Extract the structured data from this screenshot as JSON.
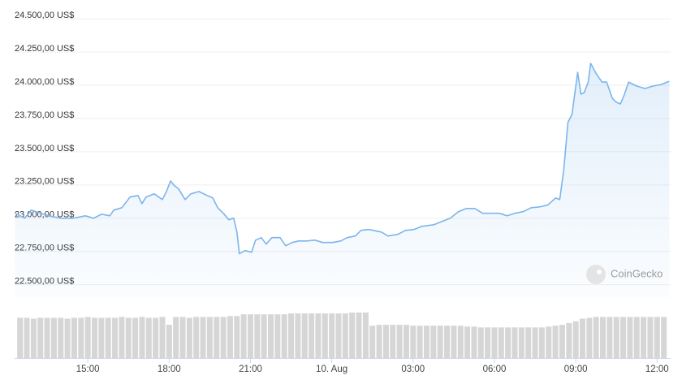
{
  "chart_data": {
    "type": "area",
    "watermark": "CoinGecko",
    "color": "#7cb5ec",
    "grid": true,
    "ylim": [
      22400,
      24550
    ],
    "yticks": [
      {
        "value": 24500,
        "label": "24.500,00 US$"
      },
      {
        "value": 24250,
        "label": "24.250,00 US$"
      },
      {
        "value": 24000,
        "label": "24.000,00 US$"
      },
      {
        "value": 23750,
        "label": "23.750,00 US$"
      },
      {
        "value": 23500,
        "label": "23.500,00 US$"
      },
      {
        "value": 23250,
        "label": "23.250,00 US$"
      },
      {
        "value": 23000,
        "label": "23.000,00 US$"
      },
      {
        "value": 22750,
        "label": "22.750,00 US$"
      },
      {
        "value": 22500,
        "label": "22.500,00 US$"
      }
    ],
    "xlim": [
      12.3,
      36.5
    ],
    "xticks": [
      {
        "value": 15,
        "label": "15:00"
      },
      {
        "value": 18,
        "label": "18:00"
      },
      {
        "value": 21,
        "label": "21:00"
      },
      {
        "value": 24,
        "label": "10. Aug"
      },
      {
        "value": 27,
        "label": "03:00"
      },
      {
        "value": 30,
        "label": "06:00"
      },
      {
        "value": 33,
        "label": "09:00"
      },
      {
        "value": 36,
        "label": "12:00"
      }
    ],
    "x": [
      12.31,
      12.67,
      12.91,
      13.27,
      13.56,
      14.01,
      14.46,
      14.91,
      15.21,
      15.51,
      15.81,
      15.96,
      16.26,
      16.56,
      16.85,
      17.0,
      17.15,
      17.45,
      17.75,
      17.9,
      18.05,
      18.2,
      18.35,
      18.59,
      18.8,
      19.1,
      19.4,
      19.61,
      19.79,
      20.0,
      20.2,
      20.38,
      20.5,
      20.59,
      20.8,
      21.04,
      21.19,
      21.4,
      21.58,
      21.79,
      22.09,
      22.3,
      22.54,
      22.78,
      23.08,
      23.38,
      23.67,
      24.03,
      24.33,
      24.57,
      24.87,
      25.08,
      25.38,
      25.68,
      25.83,
      26.07,
      26.43,
      26.73,
      27.03,
      27.32,
      27.77,
      28.07,
      28.37,
      28.67,
      28.97,
      29.27,
      29.57,
      29.87,
      30.17,
      30.47,
      30.76,
      31.06,
      31.36,
      31.66,
      31.96,
      32.26,
      32.41,
      32.56,
      32.71,
      32.86,
      33.07,
      33.19,
      33.31,
      33.46,
      33.55,
      33.76,
      33.97,
      34.14,
      34.35,
      34.5,
      34.65,
      34.8,
      34.95,
      35.25,
      35.55,
      35.85,
      36.15,
      36.45
    ],
    "values": [
      23037,
      23000,
      23061,
      23037,
      23018,
      23000,
      23000,
      23018,
      23000,
      23030,
      23018,
      23061,
      23079,
      23159,
      23171,
      23110,
      23159,
      23183,
      23140,
      23201,
      23280,
      23244,
      23220,
      23140,
      23183,
      23201,
      23171,
      23152,
      23079,
      23037,
      22988,
      23000,
      22896,
      22732,
      22756,
      22744,
      22835,
      22854,
      22805,
      22854,
      22854,
      22793,
      22817,
      22829,
      22829,
      22835,
      22817,
      22817,
      22829,
      22854,
      22866,
      22909,
      22915,
      22902,
      22896,
      22866,
      22878,
      22909,
      22915,
      22939,
      22951,
      22976,
      23000,
      23049,
      23073,
      23073,
      23037,
      23037,
      23037,
      23018,
      23037,
      23049,
      23079,
      23085,
      23098,
      23152,
      23140,
      23366,
      23720,
      23781,
      24098,
      23933,
      23945,
      24024,
      24165,
      24085,
      24024,
      24024,
      23902,
      23872,
      23860,
      23933,
      24024,
      23994,
      23976,
      23994,
      24006,
      24030
    ],
    "volume": {
      "color": "#d6d6d6",
      "x": [
        12.5,
        12.75,
        13,
        13.25,
        13.5,
        13.75,
        14,
        14.25,
        14.5,
        14.75,
        15,
        15.25,
        15.5,
        15.75,
        16,
        16.25,
        16.5,
        16.75,
        17,
        17.25,
        17.5,
        17.75,
        18,
        18.25,
        18.5,
        18.75,
        19,
        19.25,
        19.5,
        19.75,
        20,
        20.25,
        20.5,
        20.75,
        21,
        21.25,
        21.5,
        21.75,
        22,
        22.25,
        22.5,
        22.75,
        23,
        23.25,
        23.5,
        23.75,
        24,
        24.25,
        24.5,
        24.75,
        25,
        25.25,
        25.5,
        25.75,
        26,
        26.25,
        26.5,
        26.75,
        27,
        27.25,
        27.5,
        27.75,
        28,
        28.25,
        28.5,
        28.75,
        29,
        29.25,
        29.5,
        29.75,
        30,
        30.25,
        30.5,
        30.75,
        31,
        31.25,
        31.5,
        31.75,
        32,
        32.25,
        32.5,
        32.75,
        33,
        33.25,
        33.5,
        33.75,
        34,
        34.25,
        34.5,
        34.75,
        35,
        35.25,
        35.5,
        35.75,
        36,
        36.25
      ],
      "values": [
        46,
        46,
        45,
        46,
        46,
        46,
        46,
        45,
        46,
        46,
        47,
        46,
        46,
        46,
        46,
        47,
        46,
        46,
        47,
        46,
        46,
        47,
        38,
        47,
        47,
        46,
        47,
        47,
        47,
        47,
        47,
        48,
        48,
        50,
        50,
        50,
        50,
        50,
        50,
        50,
        51,
        51,
        51,
        51,
        51,
        51,
        51,
        51,
        51,
        52,
        52,
        52,
        37,
        38,
        38,
        38,
        38,
        38,
        37,
        37,
        37,
        37,
        37,
        37,
        37,
        37,
        36,
        36,
        35,
        35,
        35,
        35,
        35,
        35,
        35,
        35,
        35,
        35,
        36,
        37,
        38,
        40,
        42,
        45,
        46,
        47,
        47,
        47,
        47,
        47,
        47,
        47,
        47,
        47,
        47,
        47
      ]
    }
  }
}
